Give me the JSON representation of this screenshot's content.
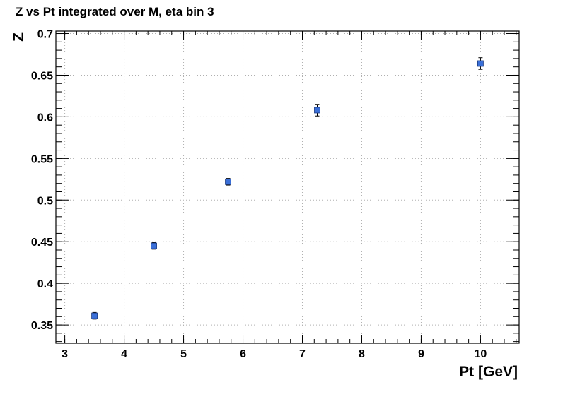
{
  "chart_data": {
    "type": "scatter",
    "title": "Z vs Pt integrated over M, eta bin 3",
    "xlabel": "Pt [GeV]",
    "ylabel": "Z",
    "xlim": [
      2.85,
      10.65
    ],
    "ylim": [
      0.328,
      0.703
    ],
    "x_ticks": [
      3,
      4,
      5,
      6,
      7,
      8,
      9,
      10
    ],
    "x_tick_labels": [
      "3",
      "4",
      "5",
      "6",
      "7",
      "8",
      "9",
      "10"
    ],
    "y_ticks": [
      0.35,
      0.4,
      0.45,
      0.5,
      0.55,
      0.6,
      0.65,
      0.7
    ],
    "y_tick_labels": [
      "0.35",
      "0.4",
      "0.45",
      "0.5",
      "0.55",
      "0.6",
      "0.65",
      "0.7"
    ],
    "grid": true,
    "marker_color": "#3a6fd8",
    "series": [
      {
        "points": [
          {
            "x": 3.5,
            "y": 0.361,
            "yerr": 0.004
          },
          {
            "x": 4.5,
            "y": 0.445,
            "yerr": 0.004
          },
          {
            "x": 5.75,
            "y": 0.522,
            "yerr": 0.004
          },
          {
            "x": 7.25,
            "y": 0.608,
            "yerr": 0.007
          },
          {
            "x": 10.0,
            "y": 0.664,
            "yerr": 0.007
          }
        ]
      }
    ]
  }
}
